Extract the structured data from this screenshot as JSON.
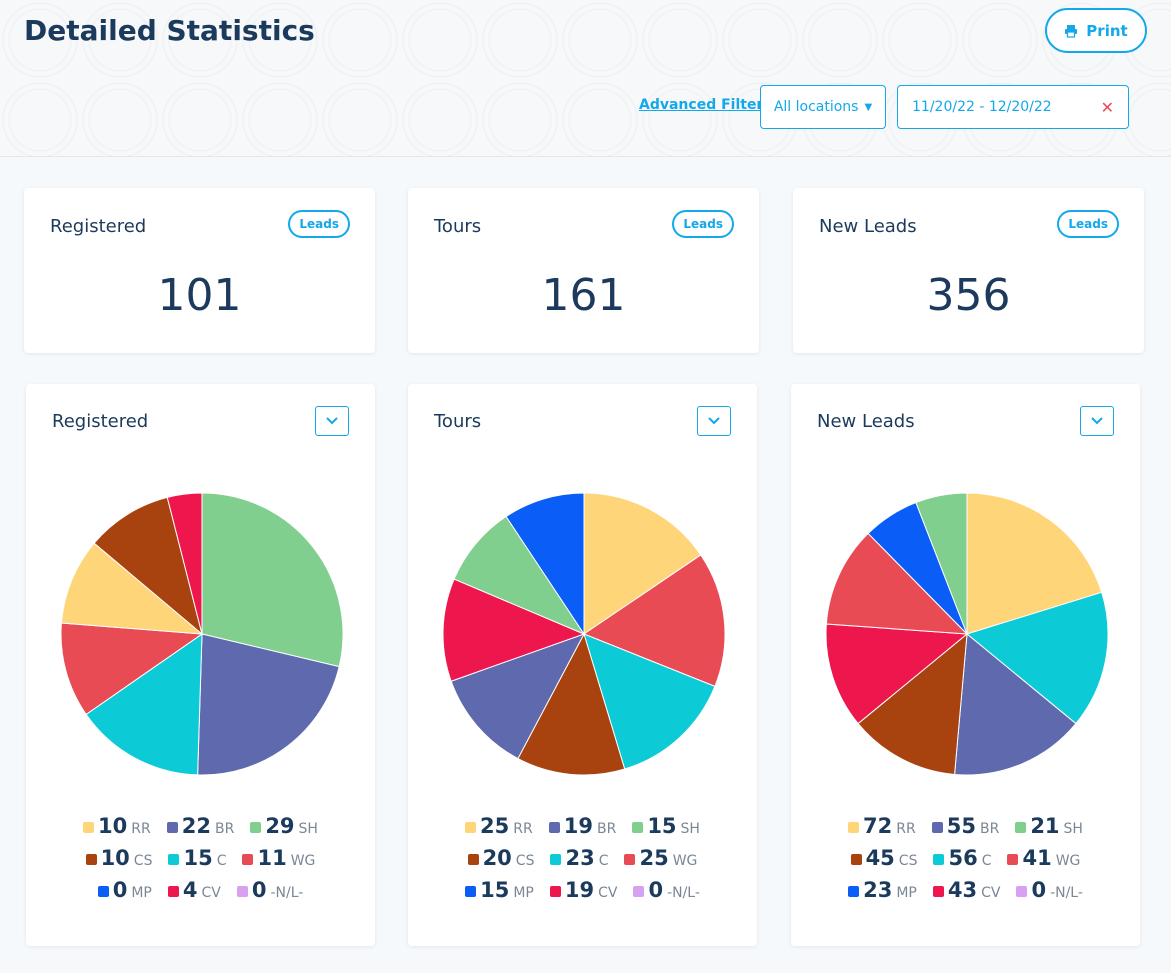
{
  "header": {
    "title": "Detailed Statistics",
    "print_label": "Print",
    "advanced_filter": "Advanced Filter",
    "location": "All locations",
    "date_range": "11/20/22 - 12/20/22"
  },
  "stats": [
    {
      "label": "Registered",
      "badge": "Leads",
      "value": "101"
    },
    {
      "label": "Tours",
      "badge": "Leads",
      "value": "161"
    },
    {
      "label": "New Leads",
      "badge": "Leads",
      "value": "356"
    }
  ],
  "colors": {
    "RR": "#FFD57A",
    "BR": "#5F6AAE",
    "SH": "#80CF8E",
    "CS": "#A8420F",
    "C": "#0CCBD6",
    "WG": "#E94B55",
    "MP": "#0A5EF7",
    "CV": "#EE174D",
    "-N/L-": "#D8A0F0",
    "accent": "#12A8EA"
  },
  "chart_data": [
    {
      "type": "pie",
      "title": "Registered",
      "categories": [
        "RR",
        "BR",
        "SH",
        "CS",
        "C",
        "WG",
        "MP",
        "CV",
        "-N/L-"
      ],
      "values": [
        10,
        22,
        29,
        10,
        15,
        11,
        0,
        4,
        0
      ]
    },
    {
      "type": "pie",
      "title": "Tours",
      "categories": [
        "RR",
        "BR",
        "SH",
        "CS",
        "C",
        "WG",
        "MP",
        "CV",
        "-N/L-"
      ],
      "values": [
        25,
        19,
        15,
        20,
        23,
        25,
        15,
        19,
        0
      ]
    },
    {
      "type": "pie",
      "title": "New Leads",
      "categories": [
        "RR",
        "BR",
        "SH",
        "CS",
        "C",
        "WG",
        "MP",
        "CV",
        "-N/L-"
      ],
      "values": [
        72,
        55,
        21,
        45,
        56,
        41,
        23,
        43,
        0
      ]
    }
  ]
}
